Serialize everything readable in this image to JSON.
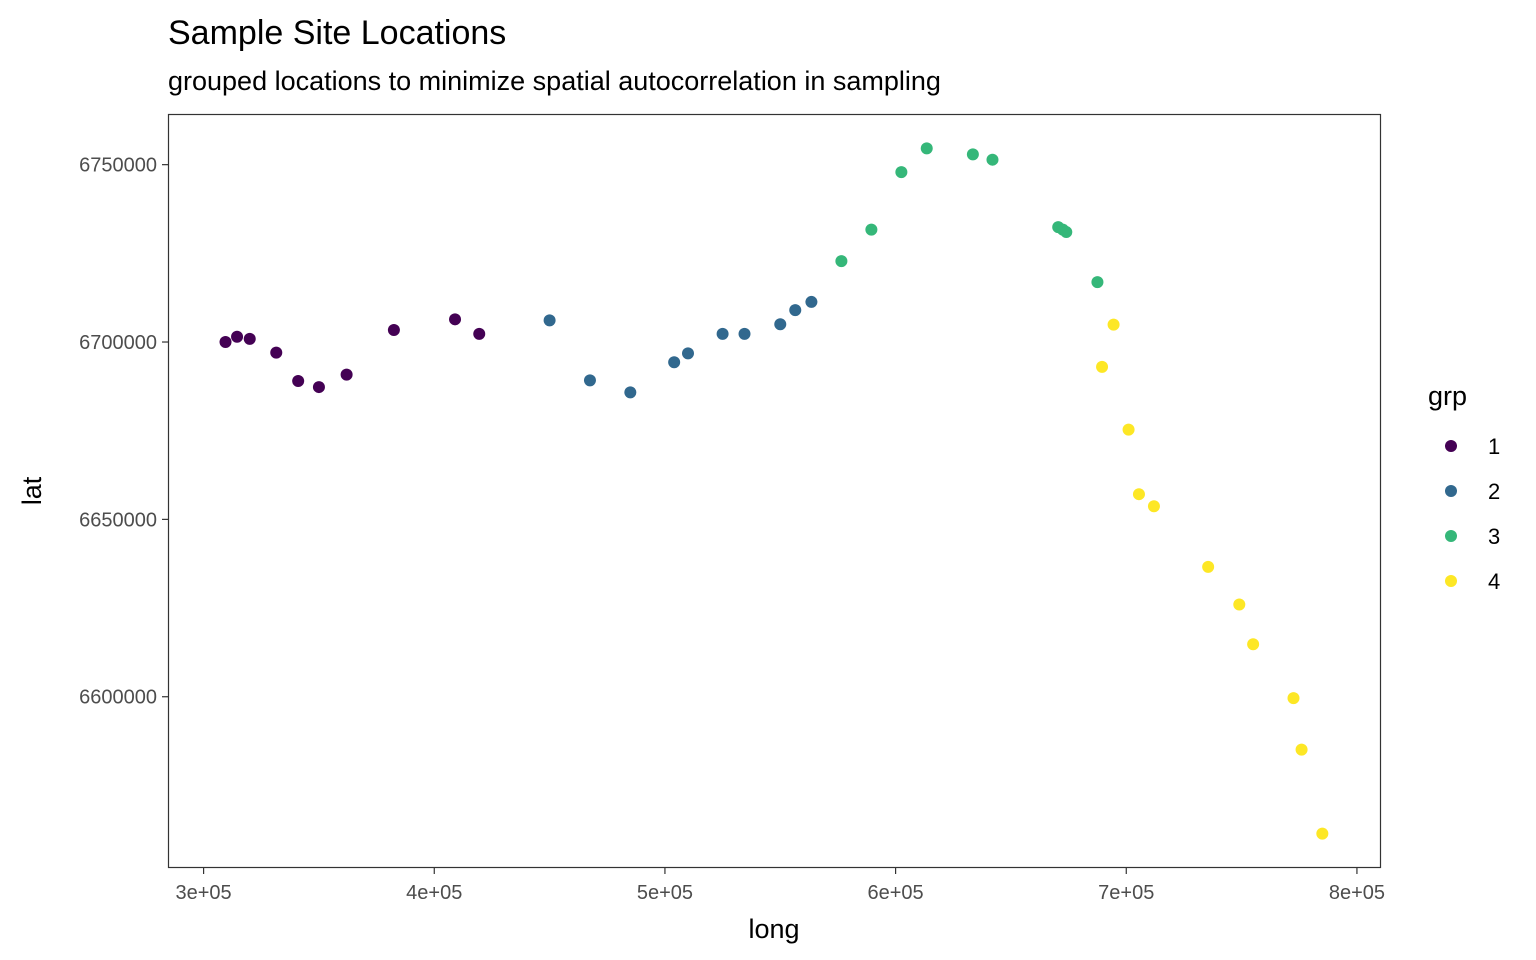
{
  "chart_data": {
    "type": "scatter",
    "title": "Sample Site Locations",
    "subtitle": "grouped locations to minimize spatial autocorrelation in sampling",
    "xlabel": "long",
    "ylabel": "lat",
    "xlim": [
      285000,
      810000
    ],
    "ylim": [
      6552000,
      6764000
    ],
    "x_ticks": [
      300000,
      400000,
      500000,
      600000,
      700000,
      800000
    ],
    "x_tick_labels": [
      "3e+05",
      "4e+05",
      "5e+05",
      "6e+05",
      "7e+05",
      "8e+05"
    ],
    "y_ticks": [
      6600000,
      6650000,
      6700000,
      6750000
    ],
    "y_tick_labels": [
      "6600000",
      "6650000",
      "6700000",
      "6750000"
    ],
    "grid": false,
    "legend": {
      "title": "grp",
      "position": "right"
    },
    "series": [
      {
        "name": "1",
        "color": "#440154",
        "points": [
          [
            309500,
            6700000
          ],
          [
            314500,
            6701500
          ],
          [
            320000,
            6700900
          ],
          [
            331500,
            6697000
          ],
          [
            341000,
            6689000
          ],
          [
            350000,
            6687300
          ],
          [
            362000,
            6690800
          ],
          [
            382500,
            6703400
          ],
          [
            409000,
            6706400
          ],
          [
            419500,
            6702300
          ]
        ]
      },
      {
        "name": "2",
        "color": "#31688e",
        "points": [
          [
            450000,
            6706100
          ],
          [
            467500,
            6689200
          ],
          [
            485000,
            6685800
          ],
          [
            504000,
            6694300
          ],
          [
            510000,
            6696800
          ],
          [
            525000,
            6702300
          ],
          [
            534500,
            6702300
          ],
          [
            550000,
            6705000
          ],
          [
            556500,
            6709000
          ],
          [
            563500,
            6711300
          ]
        ]
      },
      {
        "name": "3",
        "color": "#35b779",
        "points": [
          [
            576500,
            6722800
          ],
          [
            589500,
            6731700
          ],
          [
            602500,
            6747900
          ],
          [
            613500,
            6754600
          ],
          [
            633500,
            6752900
          ],
          [
            642000,
            6751400
          ],
          [
            670500,
            6732400
          ],
          [
            672500,
            6731700
          ],
          [
            674000,
            6731000
          ],
          [
            687500,
            6716900
          ]
        ]
      },
      {
        "name": "4",
        "color": "#fde725",
        "points": [
          [
            694500,
            6704900
          ],
          [
            689500,
            6693000
          ],
          [
            701000,
            6675300
          ],
          [
            705500,
            6657100
          ],
          [
            712000,
            6653700
          ],
          [
            735500,
            6636600
          ],
          [
            749000,
            6626000
          ],
          [
            755000,
            6614800
          ],
          [
            772500,
            6599600
          ],
          [
            776000,
            6585100
          ],
          [
            785000,
            6561400
          ]
        ]
      }
    ]
  }
}
